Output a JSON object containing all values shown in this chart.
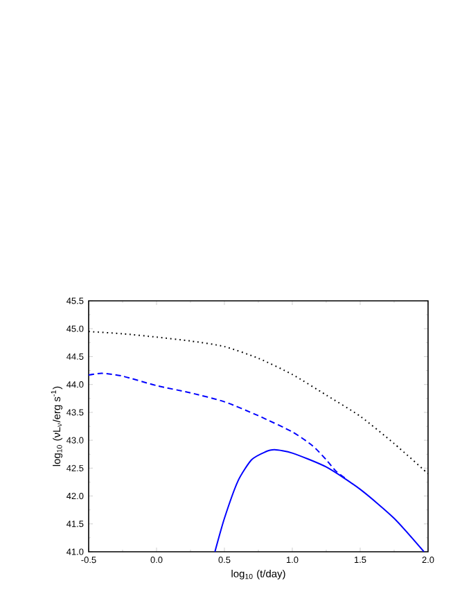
{
  "chart_data": {
    "type": "line",
    "xlabel": "log$_{10}$ (t/day)",
    "ylabel": "log$_{10}$ (νL$_{ν}$/erg s$^{-1}$)",
    "xlim": [
      -0.5,
      2.0
    ],
    "ylim": [
      41.0,
      45.5
    ],
    "xticks": [
      {
        "value": -0.5,
        "label": "-0.5"
      },
      {
        "value": 0,
        "label": "0.0"
      },
      {
        "value": 0.5,
        "label": "0.5"
      },
      {
        "value": 1.0,
        "label": "1.0"
      },
      {
        "value": 1.5,
        "label": "1.5"
      },
      {
        "value": 2.0,
        "label": "2.0"
      }
    ],
    "yticks": [
      {
        "value": 41.0,
        "label": "41.0"
      },
      41.5,
      {
        "value": 42.0,
        "label": "42.0"
      },
      42.5,
      {
        "value": 43.0,
        "label": "43.0"
      },
      43.5,
      {
        "value": 44.0,
        "label": "44.0"
      },
      44.5,
      {
        "value": 45.0,
        "label": "45.0"
      },
      45.5
    ],
    "series": [
      {
        "color": "#000000",
        "line_style": "dotted",
        "x": [
          -0.5,
          -0.25,
          0.0,
          0.25,
          0.5,
          0.75,
          1.0,
          1.25,
          1.5,
          1.75,
          2.0
        ],
        "values": [
          44.95,
          44.91,
          44.85,
          44.78,
          44.68,
          44.47,
          44.18,
          43.81,
          43.43,
          42.94,
          42.4
        ]
      },
      {
        "color": "#0000ff",
        "line_style": "dashed",
        "x": [
          -0.5,
          -0.4,
          -0.25,
          0.0,
          0.25,
          0.5,
          0.75,
          1.0,
          1.15,
          1.25,
          1.32,
          1.4
        ],
        "values": [
          44.17,
          44.2,
          44.15,
          43.98,
          43.85,
          43.69,
          43.44,
          43.15,
          42.9,
          42.65,
          42.45,
          42.3
        ]
      },
      {
        "color": "#0000ff",
        "line_style": "solid",
        "x": [
          0.43,
          0.5,
          0.6,
          0.7,
          0.8,
          0.87,
          1.0,
          1.25,
          1.5,
          1.75,
          1.97
        ],
        "values": [
          41.0,
          41.6,
          42.27,
          42.65,
          42.79,
          42.83,
          42.77,
          42.52,
          42.12,
          41.6,
          41.0
        ]
      }
    ]
  }
}
